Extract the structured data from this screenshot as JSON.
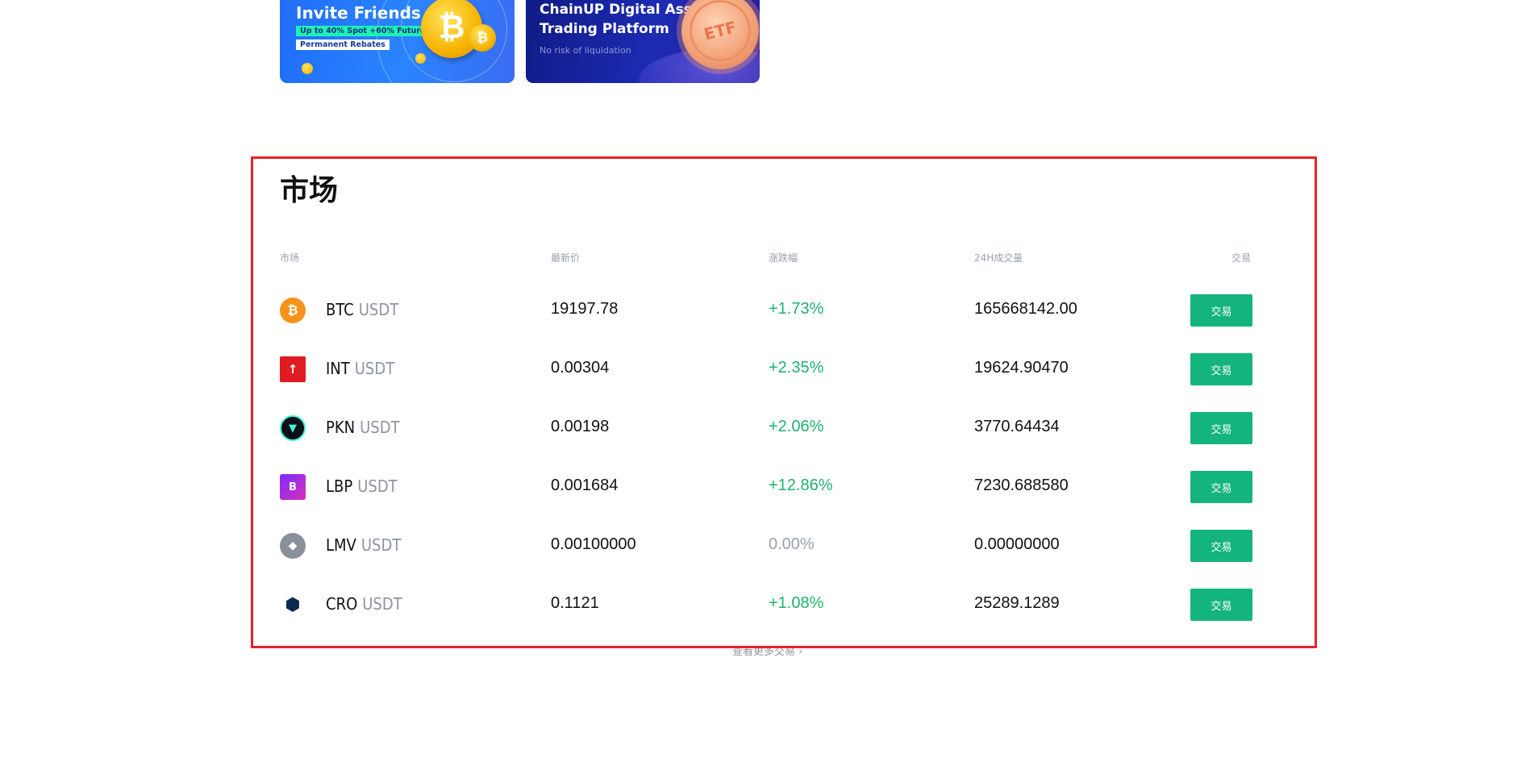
{
  "banners": {
    "invite": {
      "title": "Invite Friends",
      "tag1": "Up to 40% Spot +60% Futures",
      "tag2": "Permanent Rebates"
    },
    "etf": {
      "title_line1": "ChainUP Digital Asset",
      "title_line2": "Trading Platform",
      "subtitle": "No risk of liquidation",
      "coin_label": "ETF"
    }
  },
  "market": {
    "title": "市场",
    "columns": {
      "market": "市场",
      "price": "最新价",
      "change": "涨跌幅",
      "volume": "24H成交量",
      "trade": "交易"
    },
    "rows": [
      {
        "base": "BTC",
        "quote": "USDT",
        "price": "19197.78",
        "change": "+1.73%",
        "volume": "165668142.00",
        "trade": "交易",
        "icon": "btc-icon"
      },
      {
        "base": "INT",
        "quote": "USDT",
        "price": "0.00304",
        "change": "+2.35%",
        "volume": "19624.90470",
        "trade": "交易",
        "icon": "int-icon"
      },
      {
        "base": "PKN",
        "quote": "USDT",
        "price": "0.00198",
        "change": "+2.06%",
        "volume": "3770.64434",
        "trade": "交易",
        "icon": "pkn-icon"
      },
      {
        "base": "LBP",
        "quote": "USDT",
        "price": "0.001684",
        "change": "+12.86%",
        "volume": "7230.688580",
        "trade": "交易",
        "icon": "lbp-icon"
      },
      {
        "base": "LMV",
        "quote": "USDT",
        "price": "0.00100000",
        "change": "0.00%",
        "volume": "0.00000000",
        "trade": "交易",
        "icon": "lmv-icon"
      },
      {
        "base": "CRO",
        "quote": "USDT",
        "price": "0.1121",
        "change": "+1.08%",
        "volume": "25289.1289",
        "trade": "交易",
        "icon": "cro-icon"
      }
    ],
    "more_link": "查看更多交易 ›"
  },
  "colors": {
    "up": "#1db36f",
    "flat": "#9aa0ab",
    "trade_button": "#14b57c",
    "highlight": "#e5222c"
  }
}
